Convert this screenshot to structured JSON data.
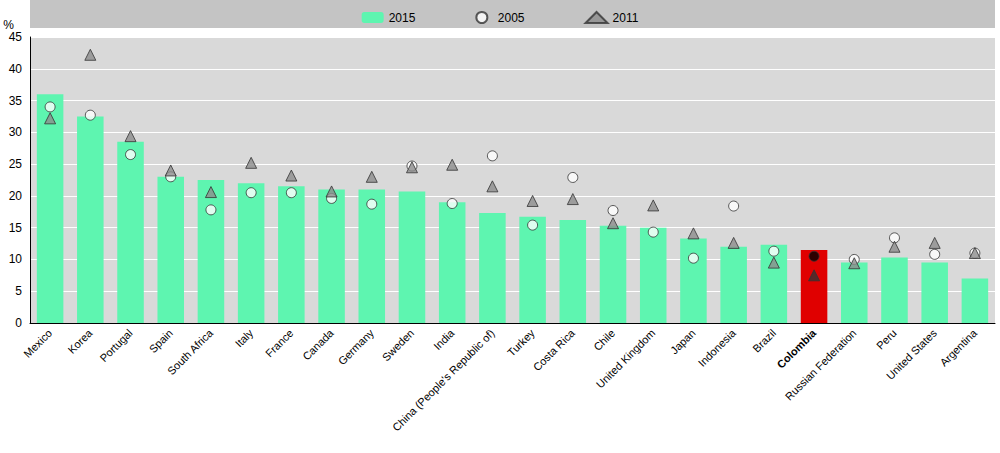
{
  "chart_data": {
    "type": "bar",
    "ylabel": "%",
    "categories": [
      "Mexico",
      "Korea",
      "Portugal",
      "Spain",
      "South Africa",
      "Italy",
      "France",
      "Canada",
      "Germany",
      "Sweden",
      "India",
      "China (People's Republic of)",
      "Turkey",
      "Costa Rica",
      "Chile",
      "United Kingdom",
      "Japan",
      "Indonesia",
      "Brazil",
      "Colombia",
      "Russian Federation",
      "Peru",
      "United States",
      "Argentina"
    ],
    "series": [
      {
        "name": "2015",
        "type": "bar",
        "color": "#5ef5b0",
        "colors": [
          "#5ef5b0",
          "#5ef5b0",
          "#5ef5b0",
          "#5ef5b0",
          "#5ef5b0",
          "#5ef5b0",
          "#5ef5b0",
          "#5ef5b0",
          "#5ef5b0",
          "#5ef5b0",
          "#5ef5b0",
          "#5ef5b0",
          "#5ef5b0",
          "#5ef5b0",
          "#5ef5b0",
          "#5ef5b0",
          "#5ef5b0",
          "#5ef5b0",
          "#5ef5b0",
          "#e00000",
          "#5ef5b0",
          "#5ef5b0",
          "#5ef5b0",
          "#5ef5b0"
        ],
        "values": [
          36,
          32.5,
          28.5,
          23,
          22.5,
          22,
          21.5,
          21,
          21,
          20.7,
          19,
          17.3,
          16.7,
          16.2,
          15.3,
          15,
          13.3,
          12,
          12.3,
          11.5,
          9.5,
          10.3,
          9.5,
          7
        ]
      },
      {
        "name": "2005",
        "type": "scatter",
        "marker": "circle",
        "color": "#ffffff",
        "colors": [
          "#ffffff",
          "#ffffff",
          "#ffffff",
          "#ffffff",
          "#ffffff",
          "#ffffff",
          "#ffffff",
          "#ffffff",
          "#ffffff",
          "#ffffff",
          "#ffffff",
          "#ffffff",
          "#ffffff",
          "#ffffff",
          "#ffffff",
          "#ffffff",
          "#ffffff",
          "#ffffff",
          "#ffffff",
          "#000000",
          "#ffffff",
          "#ffffff",
          "#ffffff",
          "#ffffff"
        ],
        "values": [
          34,
          32.7,
          26.5,
          23,
          17.8,
          20.5,
          20.5,
          19.6,
          18.7,
          24.7,
          18.8,
          26.3,
          15.4,
          22.9,
          17.7,
          14.3,
          10.2,
          18.4,
          11.3,
          10.5,
          10,
          13.4,
          10.8,
          11
        ]
      },
      {
        "name": "2011",
        "type": "scatter",
        "marker": "triangle",
        "color": "#8c8c8c",
        "colors": [
          "#8c8c8c",
          "#8c8c8c",
          "#8c8c8c",
          "#8c8c8c",
          "#8c8c8c",
          "#8c8c8c",
          "#8c8c8c",
          "#8c8c8c",
          "#8c8c8c",
          "#8c8c8c",
          "#8c8c8c",
          "#8c8c8c",
          "#8c8c8c",
          "#8c8c8c",
          "#8c8c8c",
          "#8c8c8c",
          "#8c8c8c",
          "#8c8c8c",
          "#8c8c8c",
          "#333333",
          "#8c8c8c",
          "#8c8c8c",
          "#8c8c8c",
          "#8c8c8c"
        ],
        "values": [
          32.2,
          42.2,
          29.4,
          24,
          20.6,
          25.2,
          23.2,
          20.7,
          23,
          24.5,
          24.9,
          21.5,
          19.2,
          19.5,
          15.7,
          18.5,
          14.1,
          12.6,
          9.5,
          7.5,
          9.4,
          12,
          12.6,
          11
        ]
      }
    ],
    "ylim": [
      0,
      45
    ],
    "yticks": [
      0,
      5,
      10,
      15,
      20,
      25,
      30,
      35,
      40,
      45
    ],
    "grid": true,
    "legend": "top"
  }
}
